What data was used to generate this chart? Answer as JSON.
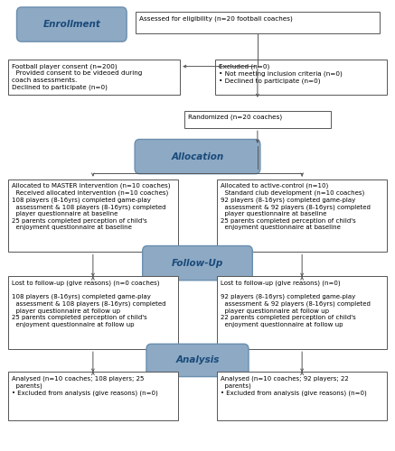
{
  "bg_color": "#ffffff",
  "box_border_color": "#555555",
  "header_fill": "#8da9c4",
  "header_text_color": "#1a4a7a",
  "header_border_color": "#6a8faf",
  "arrow_color": "#555555",
  "font_size": 5.2,
  "header_font_size": 7.5,
  "enrollment_label": "Enrollment",
  "allocation_label": "Allocation",
  "followup_label": "Follow-Up",
  "analysis_label": "Analysis",
  "eligibility_text": "Assessed for eligibility (n=20 football coaches)",
  "excluded_text": "Excluded (n=0)\n• Not meeting inclusion criteria (n=0)\n• Declined to participate (n=0)",
  "consent_text": "Football player consent (n=200)\n  Provided consent to be videoed during\ncoach assessments.\nDeclined to participate (n=0)",
  "randomized_text": "Randomized (n=20 coaches)",
  "alloc_left_text": "Allocated to MASTER intervention (n=10 coaches)\n  Received allocated intervention (n=10 coaches)\n108 players (8-16yrs) completed game-play\n  assessment & 108 players (8-16yrs) completed\n  player questionnaire at baseline\n25 parents completed perception of child's\n  enjoyment questionnaire at baseline",
  "alloc_right_text": "Allocated to active-control (n=10)\n  Standard club development (n=10 coaches)\n92 players (8-16yrs) completed game-play\n  assessment & 92 players (8-16yrs) completed\n  player questionnaire at baseline\n25 parents completed perception of child's\n  enjoyment questionnaire at baseline",
  "followup_left_text": "Lost to follow-up (give reasons) (n=0 coaches)\n\n108 players (8-16yrs) completed game-play\n  assessment & 108 players (8-16yrs) completed\n  player questionnaire at follow up\n25 parents completed perception of child's\n  enjoyment questionnaire at follow up",
  "followup_right_text": "Lost to follow-up (give reasons) (n=0)\n\n92 players (8-16yrs) completed game-play\n  assessment & 92 players (8-16yrs) completed\n  player questionnaire at follow up\n22 parents completed perception of child's\n  enjoyment questionnaire at follow up",
  "analysis_left_text": "Analysed (n=10 coaches; 108 players; 25\n  parents)\n• Excluded from analysis (give reasons) (n=0)",
  "analysis_right_text": "Analysed (n=10 coaches; 92 players; 22\n  parents)\n• Excluded from analysis (give reasons) (n=0)"
}
